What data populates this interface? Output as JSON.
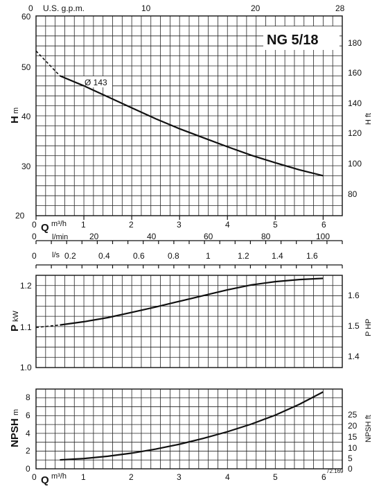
{
  "chart_data": [
    {
      "type": "line",
      "title": "NG 5/18",
      "ylabel_left": "H",
      "ylabel_left_unit": "m",
      "ylabel_right": "H ft",
      "ylim": [
        20,
        60
      ],
      "yticks_left": [
        "20",
        "30",
        "40",
        "50",
        "60"
      ],
      "yticks_right": [
        "80",
        "100",
        "120",
        "140",
        "160",
        "180"
      ],
      "xticks_top_usgpm": [
        "0",
        "U.S. g.p.m.",
        "10",
        "20",
        "28"
      ],
      "series": [
        {
          "name": "Ø 143",
          "x": [
            0,
            0.5,
            1,
            1.5,
            2,
            2.5,
            3,
            3.5,
            4,
            4.5,
            5,
            5.5,
            6
          ],
          "y": [
            53,
            48,
            46,
            43.8,
            41.6,
            39.4,
            37.4,
            35.6,
            33.8,
            32.1,
            30.6,
            29.2,
            28
          ]
        }
      ]
    },
    {
      "type": "line",
      "ylabel_left": "P",
      "ylabel_left_unit": "kW",
      "ylabel_right": "P HP",
      "ylim": [
        1.0,
        1.25
      ],
      "yticks_left": [
        "1.0",
        "1.1",
        "1.2"
      ],
      "yticks_right": [
        "1.4",
        "1.5",
        "1.6"
      ],
      "series": [
        {
          "x": [
            0,
            0.5,
            1,
            1.5,
            2,
            2.5,
            3,
            3.5,
            4,
            4.5,
            5,
            5.5,
            6
          ],
          "y": [
            1.098,
            1.104,
            1.112,
            1.122,
            1.135,
            1.148,
            1.162,
            1.176,
            1.19,
            1.202,
            1.21,
            1.215,
            1.218
          ]
        }
      ]
    },
    {
      "type": "line",
      "ylabel_left": "NPSH",
      "ylabel_left_unit": "m",
      "ylabel_right": "NPSH ft",
      "ylim": [
        0,
        9
      ],
      "yticks_left": [
        "0",
        "2",
        "4",
        "6",
        "8"
      ],
      "yticks_right": [
        "0",
        "5",
        "10",
        "15",
        "20",
        "25"
      ],
      "series": [
        {
          "x": [
            0.5,
            1,
            1.5,
            2,
            2.5,
            3,
            3.5,
            4,
            4.5,
            5,
            5.5,
            6
          ],
          "y": [
            1.0,
            1.15,
            1.4,
            1.75,
            2.2,
            2.75,
            3.4,
            4.15,
            5.0,
            6.0,
            7.2,
            8.6
          ]
        }
      ]
    }
  ],
  "axes": {
    "q_label": "Q",
    "q_unit": "m³/h",
    "q_ticks": [
      "0",
      "1",
      "2",
      "3",
      "4",
      "5",
      "6"
    ],
    "lmin_label": "l/min",
    "lmin_ticks": [
      "0",
      "20",
      "40",
      "60",
      "80",
      "100"
    ],
    "ls_label": "l/s",
    "ls_ticks": [
      "0",
      "0.2",
      "0.4",
      "0.6",
      "0.8",
      "1",
      "1.2",
      "1.4",
      "1.6"
    ]
  },
  "footnote": "72.169"
}
